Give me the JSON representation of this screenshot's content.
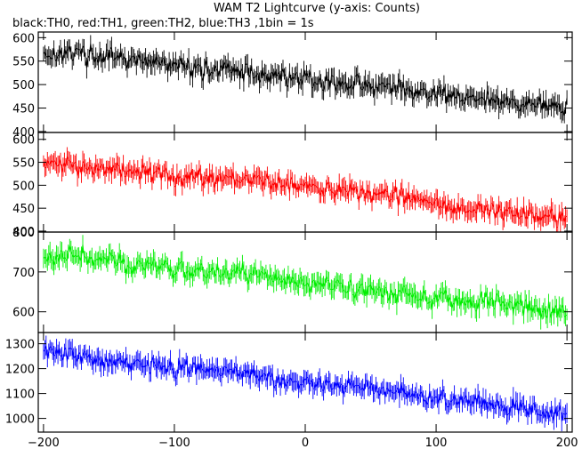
{
  "chart_data": [
    {
      "type": "line",
      "title": "WAM T2 Lightcurve (y-axis: Counts)",
      "subtitle": "black:TH0, red:TH1, green:TH2, blue:TH3 ,1bin = 1s",
      "x_ticks": [
        -200,
        -100,
        0,
        100,
        200
      ],
      "xlim": [
        -204,
        204
      ],
      "panels": [
        {
          "name": "TH0",
          "color": "#000000",
          "ylim": [
            398,
            612
          ],
          "y_ticks": [
            400,
            450,
            500,
            550,
            600
          ],
          "x": [
            -200,
            -180,
            -160,
            -140,
            -120,
            -100,
            -80,
            -60,
            -40,
            -20,
            0,
            20,
            40,
            60,
            80,
            100,
            120,
            140,
            160,
            180,
            200
          ],
          "values": [
            565,
            568,
            562,
            552,
            548,
            540,
            535,
            530,
            525,
            520,
            512,
            505,
            500,
            495,
            488,
            480,
            472,
            467,
            462,
            458,
            455
          ],
          "noise": 22
        },
        {
          "name": "TH1",
          "color": "#ff0000",
          "ylim": [
            398,
            615
          ],
          "y_ticks": [
            400,
            450,
            500,
            550,
            600
          ],
          "x": [
            -200,
            -180,
            -160,
            -140,
            -120,
            -100,
            -80,
            -60,
            -40,
            -20,
            0,
            20,
            40,
            60,
            80,
            100,
            120,
            140,
            160,
            180,
            200
          ],
          "values": [
            545,
            545,
            540,
            532,
            527,
            522,
            518,
            515,
            510,
            505,
            498,
            492,
            487,
            480,
            470,
            460,
            452,
            445,
            440,
            432,
            425
          ],
          "noise": 22
        },
        {
          "name": "TH2",
          "color": "#00ee00",
          "ylim": [
            548,
            800
          ],
          "y_ticks": [
            600,
            700,
            800
          ],
          "x": [
            -200,
            -180,
            -160,
            -140,
            -120,
            -100,
            -80,
            -60,
            -40,
            -20,
            0,
            20,
            40,
            60,
            80,
            100,
            120,
            140,
            160,
            180,
            200
          ],
          "values": [
            740,
            740,
            732,
            722,
            715,
            710,
            705,
            700,
            690,
            680,
            672,
            665,
            660,
            652,
            645,
            640,
            632,
            625,
            615,
            605,
            598
          ],
          "noise": 26
        },
        {
          "name": "TH3",
          "color": "#0000ff",
          "ylim": [
            945,
            1345
          ],
          "y_ticks": [
            1000,
            1100,
            1200,
            1300
          ],
          "x": [
            -200,
            -180,
            -160,
            -140,
            -120,
            -100,
            -80,
            -60,
            -40,
            -20,
            0,
            20,
            40,
            60,
            80,
            100,
            120,
            140,
            160,
            180,
            200
          ],
          "values": [
            1265,
            1255,
            1240,
            1225,
            1215,
            1205,
            1198,
            1190,
            1175,
            1160,
            1145,
            1130,
            1120,
            1110,
            1095,
            1080,
            1068,
            1058,
            1045,
            1030,
            1010
          ],
          "noise": 40
        }
      ]
    }
  ]
}
